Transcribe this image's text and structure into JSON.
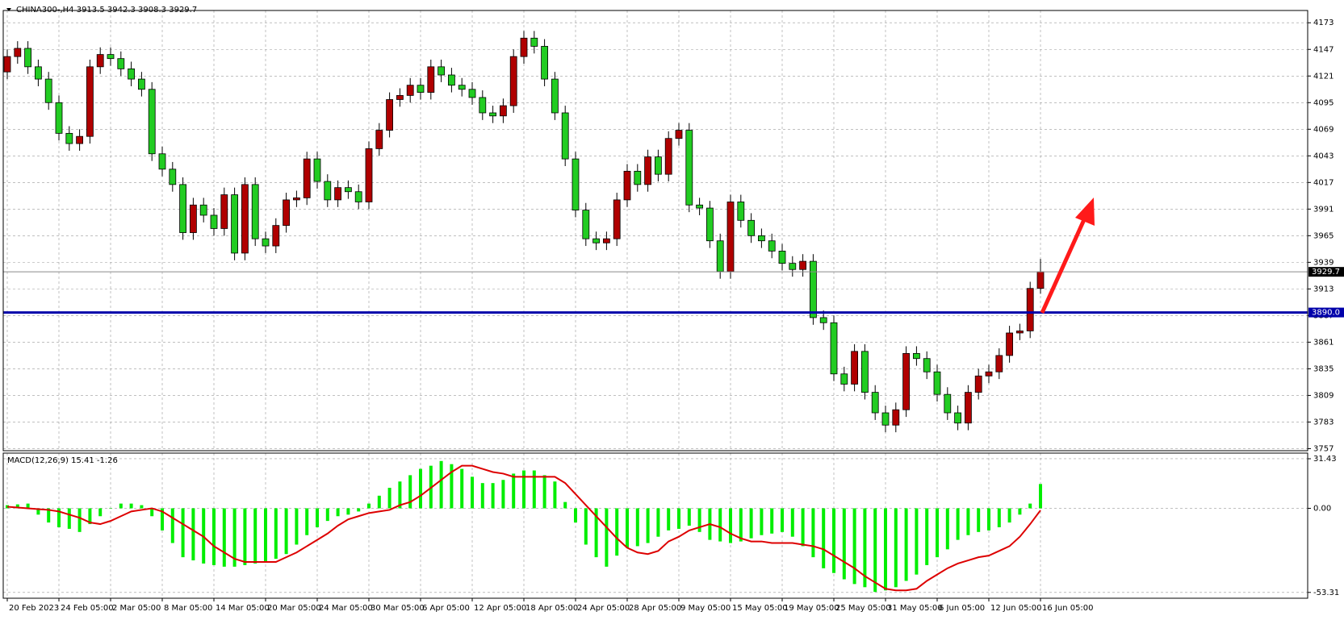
{
  "chart_data": {
    "type": "candlestick",
    "title": "CHINA300-,H4  3913.5 3942.3 3908.3 3929.7",
    "categories": [
      "20 Feb 2023",
      null,
      null,
      null,
      null,
      "24 Feb 05:00",
      null,
      null,
      null,
      null,
      "2 Mar 05:00",
      null,
      null,
      null,
      null,
      "8 Mar 05:00",
      null,
      null,
      null,
      null,
      "14 Mar 05:00",
      null,
      null,
      null,
      null,
      "20 Mar 05:00",
      null,
      null,
      null,
      null,
      "24 Mar 05:00",
      null,
      null,
      null,
      null,
      "30 Mar 05:00",
      null,
      null,
      null,
      null,
      "6 Apr 05:00",
      null,
      null,
      null,
      null,
      "12 Apr 05:00",
      null,
      null,
      null,
      null,
      "18 Apr 05:00",
      null,
      null,
      null,
      null,
      "24 Apr 05:00",
      null,
      null,
      null,
      null,
      "28 Apr 05:00",
      null,
      null,
      null,
      null,
      "9 May 05:00",
      null,
      null,
      null,
      null,
      "15 May 05:00",
      null,
      null,
      null,
      null,
      "19 May 05:00",
      null,
      null,
      null,
      null,
      "25 May 05:00",
      null,
      null,
      null,
      null,
      "31 May 05:00",
      null,
      null,
      null,
      null,
      "6 Jun 05:00",
      null,
      null,
      null,
      null,
      "12 Jun 05:00",
      null,
      null,
      null,
      null,
      "16 Jun 05:00"
    ],
    "open": [
      4125,
      4140,
      4148,
      4130,
      4118,
      4095,
      4065,
      4055,
      4062,
      4130,
      4142,
      4138,
      4128,
      4118,
      4108,
      4045,
      4030,
      4015,
      3968,
      3995,
      3985,
      3972,
      4005,
      3948,
      4015,
      3962,
      3955,
      3975,
      4000,
      4002,
      4040,
      4018,
      4000,
      4012,
      4008,
      3998,
      4050,
      4068,
      4098,
      4102,
      4112,
      4105,
      4130,
      4122,
      4112,
      4108,
      4100,
      4085,
      4082,
      4092,
      4140,
      4158,
      4150,
      4118,
      4085,
      4040,
      3990,
      3962,
      3958,
      3962,
      4000,
      4028,
      4015,
      4042,
      4025,
      4060,
      4068,
      3995,
      3992,
      3960,
      3930,
      3998,
      3980,
      3965,
      3960,
      3950,
      3938,
      3932,
      3940,
      3885,
      3880,
      3830,
      3820,
      3852,
      3812,
      3792,
      3780,
      3795,
      3850,
      3845,
      3832,
      3810,
      3792,
      3782,
      3812,
      3828,
      3832,
      3848,
      3870,
      3872,
      3913.5
    ],
    "high": [
      4147,
      4155,
      4155,
      4137,
      4125,
      4102,
      4072,
      4069,
      4137,
      4149,
      4149,
      4145,
      4135,
      4125,
      4115,
      4052,
      4037,
      4022,
      4002,
      4002,
      3992,
      4012,
      4012,
      4022,
      4022,
      3969,
      3982,
      4007,
      4009,
      4047,
      4047,
      4025,
      4019,
      4019,
      4015,
      4057,
      4075,
      4105,
      4109,
      4119,
      4119,
      4137,
      4137,
      4129,
      4119,
      4115,
      4107,
      4092,
      4099,
      4147,
      4165,
      4165,
      4157,
      4125,
      4092,
      4047,
      3997,
      3969,
      3969,
      4007,
      4035,
      4035,
      4049,
      4049,
      4067,
      4075,
      4075,
      4002,
      3999,
      3967,
      4005,
      4005,
      3987,
      3972,
      3967,
      3957,
      3945,
      3947,
      3947,
      3892,
      3887,
      3837,
      3859,
      3859,
      3819,
      3799,
      3802,
      3857,
      3857,
      3852,
      3839,
      3817,
      3799,
      3819,
      3835,
      3839,
      3855,
      3877,
      3879,
      3920,
      3942.3
    ],
    "low": [
      4118,
      4133,
      4123,
      4111,
      4088,
      4058,
      4048,
      4048,
      4055,
      4123,
      4131,
      4121,
      4111,
      4101,
      4038,
      4023,
      4008,
      3961,
      3961,
      3978,
      3965,
      3965,
      3941,
      3941,
      3955,
      3948,
      3948,
      3968,
      3993,
      3995,
      4011,
      3993,
      3993,
      4001,
      3991,
      3991,
      4043,
      4061,
      4091,
      4095,
      4098,
      4098,
      4115,
      4105,
      4101,
      4093,
      4078,
      4075,
      4075,
      4085,
      4133,
      4143,
      4111,
      4078,
      4033,
      3983,
      3955,
      3951,
      3951,
      3955,
      3993,
      4008,
      4008,
      4018,
      4018,
      4053,
      3988,
      3985,
      3953,
      3923,
      3923,
      3973,
      3958,
      3953,
      3943,
      3931,
      3925,
      3925,
      3878,
      3873,
      3823,
      3813,
      3813,
      3805,
      3785,
      3773,
      3773,
      3788,
      3838,
      3825,
      3803,
      3785,
      3775,
      3775,
      3805,
      3821,
      3825,
      3841,
      3863,
      3865,
      3908.3
    ],
    "close": [
      4140,
      4148,
      4130,
      4118,
      4095,
      4065,
      4055,
      4062,
      4130,
      4142,
      4138,
      4128,
      4118,
      4108,
      4045,
      4030,
      4015,
      3968,
      3995,
      3985,
      3972,
      4005,
      3948,
      4015,
      3962,
      3955,
      3975,
      4000,
      4002,
      4040,
      4018,
      4000,
      4012,
      4008,
      3998,
      4050,
      4068,
      4098,
      4102,
      4112,
      4105,
      4130,
      4122,
      4112,
      4108,
      4100,
      4085,
      4082,
      4092,
      4140,
      4158,
      4150,
      4118,
      4085,
      4040,
      3990,
      3962,
      3958,
      3962,
      4000,
      4028,
      4015,
      4042,
      4025,
      4060,
      4068,
      3995,
      3992,
      3960,
      3930,
      3998,
      3980,
      3965,
      3960,
      3950,
      3938,
      3932,
      3940,
      3885,
      3880,
      3830,
      3820,
      3852,
      3812,
      3792,
      3780,
      3795,
      3850,
      3845,
      3832,
      3810,
      3792,
      3782,
      3812,
      3828,
      3832,
      3848,
      3870,
      3872,
      3913.5,
      3929.7
    ],
    "up_color": "#b00000",
    "down_color": "#22cc22",
    "ylim": [
      3755,
      4185
    ],
    "yticks": [
      3757,
      3783,
      3809,
      3835,
      3861,
      3887,
      3913,
      3939,
      3965,
      3991,
      4017,
      4043,
      4069,
      4095,
      4121,
      4147,
      4173
    ],
    "grid": true,
    "current_price": 3929.7,
    "level": {
      "value": 3890,
      "label": "3890.0"
    },
    "level_color": "#0000aa",
    "indicator": {
      "type": "macd",
      "title": "MACD(12,26,9) 15.41 -1.26",
      "histogram": [
        2,
        2.5,
        3,
        -4,
        -9,
        -12,
        -13,
        -15,
        -10,
        -5,
        0,
        3,
        3,
        2,
        -5,
        -14,
        -22,
        -31,
        -33,
        -35,
        -36,
        -37,
        -37,
        -36,
        -35,
        -34,
        -32,
        -29,
        -23,
        -17,
        -12,
        -8,
        -5,
        -4,
        -2,
        3,
        8,
        13,
        17,
        21,
        25,
        27,
        30,
        28,
        25,
        20,
        16,
        16,
        18,
        22,
        24,
        24,
        21,
        17,
        4,
        -9,
        -23,
        -31,
        -37,
        -30,
        -25,
        -24,
        -22,
        -18,
        -14,
        -13,
        -11,
        -15,
        -20,
        -21,
        -22,
        -21,
        -19,
        -17,
        -16,
        -15,
        -18,
        -24,
        -31,
        -38,
        -41,
        -45,
        -48,
        -50,
        -53,
        -52,
        -50,
        -46,
        -42,
        -36,
        -31,
        -26,
        -20,
        -17,
        -15,
        -14,
        -12,
        -9,
        -4,
        3,
        15.41
      ],
      "signal": [
        1,
        0.5,
        0,
        -0.5,
        -1,
        -2,
        -4,
        -6,
        -9,
        -10,
        -8,
        -5,
        -2,
        -1,
        0,
        -2,
        -6,
        -10,
        -14,
        -18,
        -24,
        -28,
        -32,
        -34,
        -34,
        -34,
        -34,
        -31,
        -28,
        -24,
        -20,
        -16,
        -11,
        -7,
        -5,
        -3,
        -2,
        -1,
        2,
        4,
        8,
        13,
        18,
        23,
        27,
        27,
        25,
        23,
        22,
        20,
        20,
        20,
        20,
        20,
        16,
        9,
        2,
        -5,
        -12,
        -19,
        -25,
        -28,
        -29,
        -27,
        -21,
        -18,
        -14,
        -12,
        -10,
        -12,
        -16,
        -19,
        -21,
        -21,
        -22,
        -22,
        -22,
        -23,
        -24,
        -26,
        -30,
        -34,
        -38,
        -43,
        -47,
        -51,
        -52,
        -52,
        -51,
        -46,
        -42,
        -38,
        -35,
        -33,
        -31,
        -30,
        -27,
        -24,
        -18,
        -10,
        -1.26
      ],
      "histogram_color": "#00ee00",
      "signal_color": "#dd0000",
      "ylim": [
        -57,
        35
      ],
      "yticks": [
        31.43,
        {
          "value": 0,
          "label": "0.00"
        },
        -53.31
      ]
    }
  }
}
